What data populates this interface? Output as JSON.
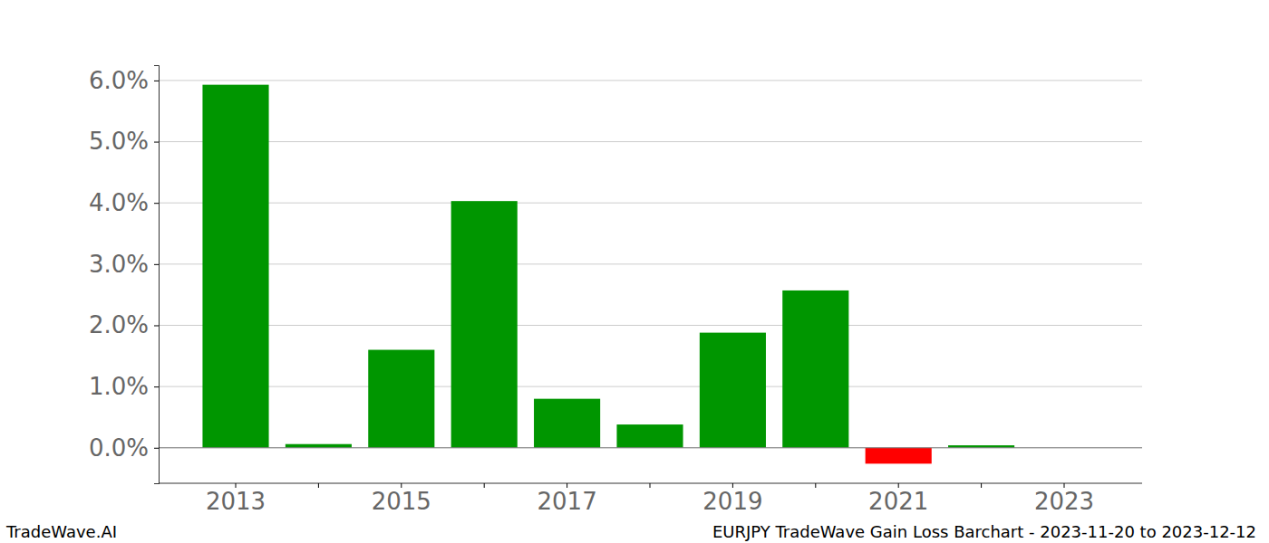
{
  "chart_data": {
    "type": "bar",
    "title": "EURJPY TradeWave Gain Loss Barchart - 2023-11-20 to 2023-12-12",
    "annotations": [
      "TradeWave.AI"
    ],
    "categories": [
      "2013",
      null,
      "2015",
      null,
      "2017",
      null,
      "2019",
      null,
      "2021",
      null,
      "2023"
    ],
    "values": [
      5.93,
      0.06,
      1.6,
      4.03,
      0.8,
      0.38,
      1.88,
      2.57,
      -0.26,
      0.04,
      0
    ],
    "colors": [
      "#009600",
      "#009600",
      "#009600",
      "#009600",
      "#009600",
      "#009600",
      "#009600",
      "#009600",
      "#ff0000",
      "#009600",
      "#009600"
    ],
    "ylim": [
      -0.58,
      6.25
    ],
    "yticks": [
      {
        "value": 0,
        "label": "0.0%"
      },
      {
        "value": 1,
        "label": "1.0%"
      },
      {
        "value": 2,
        "label": "2.0%"
      },
      {
        "value": 3,
        "label": "3.0%"
      },
      {
        "value": 4,
        "label": "4.0%"
      },
      {
        "value": 5,
        "label": "5.0%"
      },
      {
        "value": 6,
        "label": "6.0%"
      }
    ],
    "grid": true
  }
}
